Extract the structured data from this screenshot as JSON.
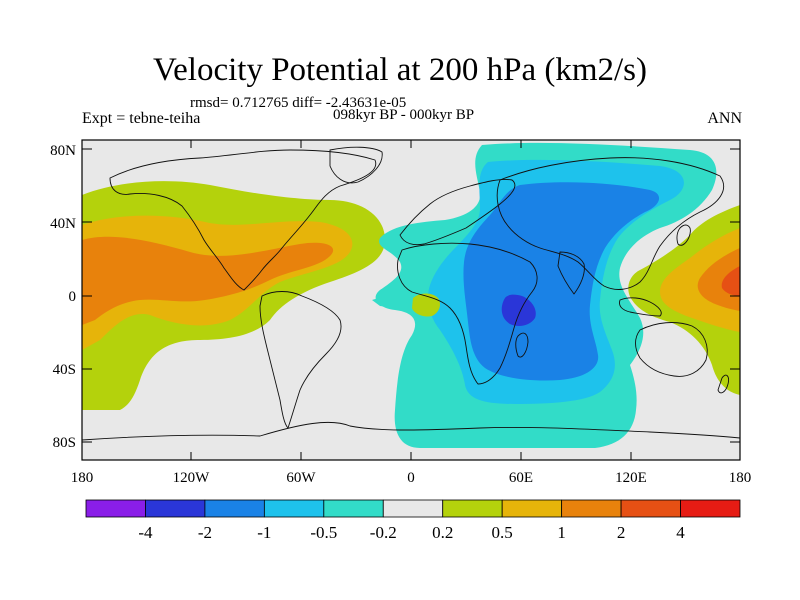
{
  "title": "Velocity Potential at 200 hPa (km2/s)",
  "stats": "rmsd= 0.712765 diff= -2.43631e-05",
  "expt": "Expt = tebne-teiha",
  "period": "098kyr BP - 000kyr BP",
  "season": "ANN",
  "lat_labels": [
    "80N",
    "40N",
    "0",
    "40S",
    "80S"
  ],
  "lon_labels": [
    "180",
    "120W",
    "60W",
    "0",
    "60E",
    "120E",
    "180"
  ],
  "colorbar": {
    "labels": [
      "-4",
      "-2",
      "-1",
      "-0.5",
      "-0.2",
      "0.2",
      "0.5",
      "1",
      "2",
      "4"
    ],
    "colors": [
      "#8a1ee8",
      "#2a36d8",
      "#1a82e6",
      "#1ec2ec",
      "#32dcc8",
      "#e8e8e8",
      "#b4d20c",
      "#e6b40a",
      "#e8820c",
      "#e65014",
      "#e61c14"
    ]
  }
}
